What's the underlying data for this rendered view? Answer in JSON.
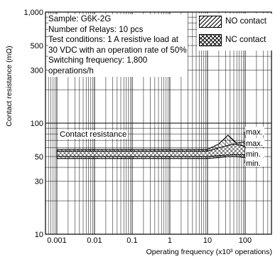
{
  "chart_data": {
    "type": "area",
    "title": "",
    "xlabel": "Operating frequency (x10³ operations)",
    "ylabel": "Contact resistance (mΩ)",
    "x_scale": "log",
    "y_scale": "log",
    "xlim": [
      0.0005,
      500
    ],
    "ylim": [
      10,
      1000
    ],
    "x_ticks": [
      {
        "value": 0.001,
        "label": "0.001"
      },
      {
        "value": 0.01,
        "label": "0.01"
      },
      {
        "value": 0.1,
        "label": "0.1"
      },
      {
        "value": 1,
        "label": "1"
      },
      {
        "value": 10,
        "label": "10"
      },
      {
        "value": 100,
        "label": "100"
      }
    ],
    "y_ticks": [
      {
        "value": 10,
        "label": "10"
      },
      {
        "value": 30,
        "label": "30"
      },
      {
        "value": 50,
        "label": "50"
      },
      {
        "value": 100,
        "label": "100"
      },
      {
        "value": 300,
        "label": "300"
      },
      {
        "value": 500,
        "label": "500"
      },
      {
        "value": 1000,
        "label": "1,000"
      }
    ],
    "grid": true,
    "notes": [
      "Sample: G6K-2G",
      "Number of Relays: 10 pcs",
      "Test conditions: 1 A resistive load at 30 VDC with an operation rate of 50%",
      "Switching frequency: 1,800 operations/h"
    ],
    "annotation": "Contact resistance",
    "legend": {
      "position": "top-right",
      "items": [
        {
          "label": "NO contact",
          "pattern": "hatch-diagonal"
        },
        {
          "label": "NC contact",
          "pattern": "hatch-cross"
        }
      ]
    },
    "band_labels": [
      "max.",
      "max.",
      "min.",
      "min."
    ],
    "series": [
      {
        "name": "NO contact",
        "x": [
          0.001,
          0.01,
          0.1,
          1,
          10,
          20,
          50,
          100
        ],
        "max": [
          56,
          56,
          56,
          56,
          56,
          60,
          65,
          62
        ],
        "min": [
          50,
          50,
          50,
          50,
          50,
          51,
          52,
          52
        ]
      },
      {
        "name": "NC contact",
        "x": [
          0.001,
          0.01,
          0.1,
          1,
          10,
          20,
          35,
          60,
          100
        ],
        "max": [
          58,
          58,
          58,
          58,
          58,
          65,
          78,
          66,
          68
        ],
        "min": [
          48,
          48,
          48,
          48,
          48,
          49,
          50,
          50,
          49
        ]
      }
    ]
  }
}
